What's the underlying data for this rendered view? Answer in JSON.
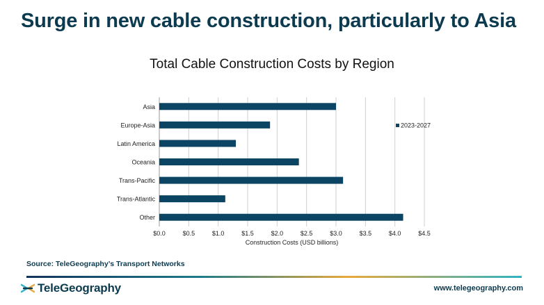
{
  "page": {
    "headline": "Surge in new cable construction, particularly to Asia",
    "source": "Source: TeleGeography’s Transport Networks",
    "brand": "TeleGeography",
    "url": "www.telegeography.com",
    "colors": {
      "bar": "#0c4563",
      "text": "#0c3a4f",
      "grid": "#cfcfcf"
    },
    "icons": {
      "logo": "telegeography-logo-icon"
    }
  },
  "chart_data": {
    "type": "bar",
    "orientation": "horizontal",
    "title": "Total Cable Construction Costs by Region",
    "xlabel": "Construction Costs (USD billions)",
    "ylabel": "",
    "categories": [
      "Asia",
      "Europe-Asia",
      "Latin America",
      "Oceania",
      "Trans-Pacific",
      "Trans-Atlantic",
      "Other"
    ],
    "series": [
      {
        "name": "2023-2027",
        "values": [
          3.0,
          1.88,
          1.3,
          2.37,
          3.12,
          1.12,
          4.14
        ]
      }
    ],
    "xlim": [
      0,
      4.5
    ],
    "xticks": [
      0,
      0.5,
      1.0,
      1.5,
      2.0,
      2.5,
      3.0,
      3.5,
      4.0,
      4.5
    ],
    "xtick_labels": [
      "$0.0",
      "$0.5",
      "$1.0",
      "$1.5",
      "$2.0",
      "$2.5",
      "$3.0",
      "$3.5",
      "$4.0",
      "$4.5"
    ],
    "grid": "vertical",
    "legend": "right"
  }
}
